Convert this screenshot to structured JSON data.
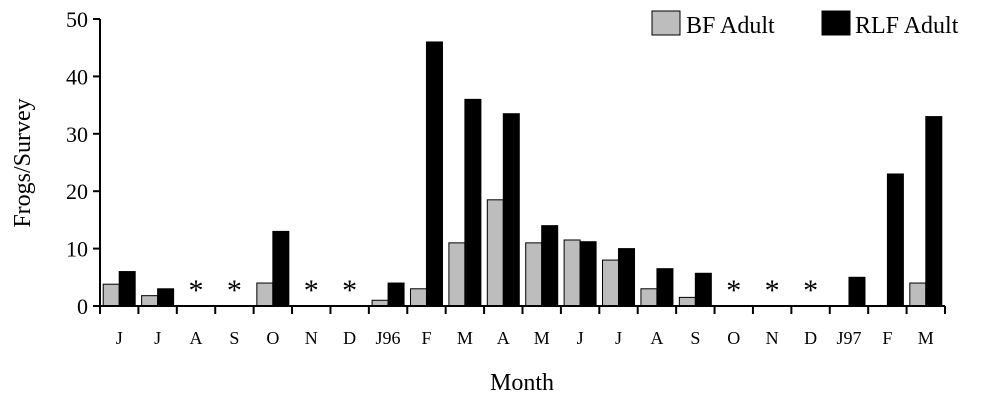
{
  "chart_data": {
    "type": "bar",
    "xlabel": "Month",
    "ylabel": "Frogs/Survey",
    "ylim": [
      0,
      50
    ],
    "yticks": [
      0,
      10,
      20,
      30,
      40,
      50
    ],
    "grid": false,
    "legend_position": "top-right",
    "categories": [
      "J",
      "J",
      "A",
      "S",
      "O",
      "N",
      "D",
      "J96",
      "F",
      "M",
      "A",
      "M",
      "J",
      "J",
      "A",
      "S",
      "O",
      "N",
      "D",
      "J97",
      "F",
      "M"
    ],
    "series": [
      {
        "name": "BF Adult",
        "color": "#bdbdbd",
        "values": [
          3.8,
          1.8,
          null,
          null,
          4,
          0,
          null,
          1,
          3,
          11,
          18.5,
          11,
          11.5,
          8,
          3,
          1.5,
          null,
          null,
          null,
          0,
          0,
          4
        ]
      },
      {
        "name": "RLF Adult",
        "color": "#000000",
        "values": [
          6,
          3,
          null,
          null,
          13,
          0,
          null,
          4,
          46,
          36,
          33.5,
          14,
          11.2,
          10,
          6.5,
          5.7,
          null,
          null,
          null,
          5,
          23,
          33
        ]
      }
    ],
    "annotations": [
      {
        "category_index": 2,
        "text": "*"
      },
      {
        "category_index": 3,
        "text": "*"
      },
      {
        "category_index": 5,
        "text": "*"
      },
      {
        "category_index": 6,
        "text": "*"
      },
      {
        "category_index": 16,
        "text": "*"
      },
      {
        "category_index": 17,
        "text": "*"
      },
      {
        "category_index": 18,
        "text": "*"
      }
    ]
  }
}
